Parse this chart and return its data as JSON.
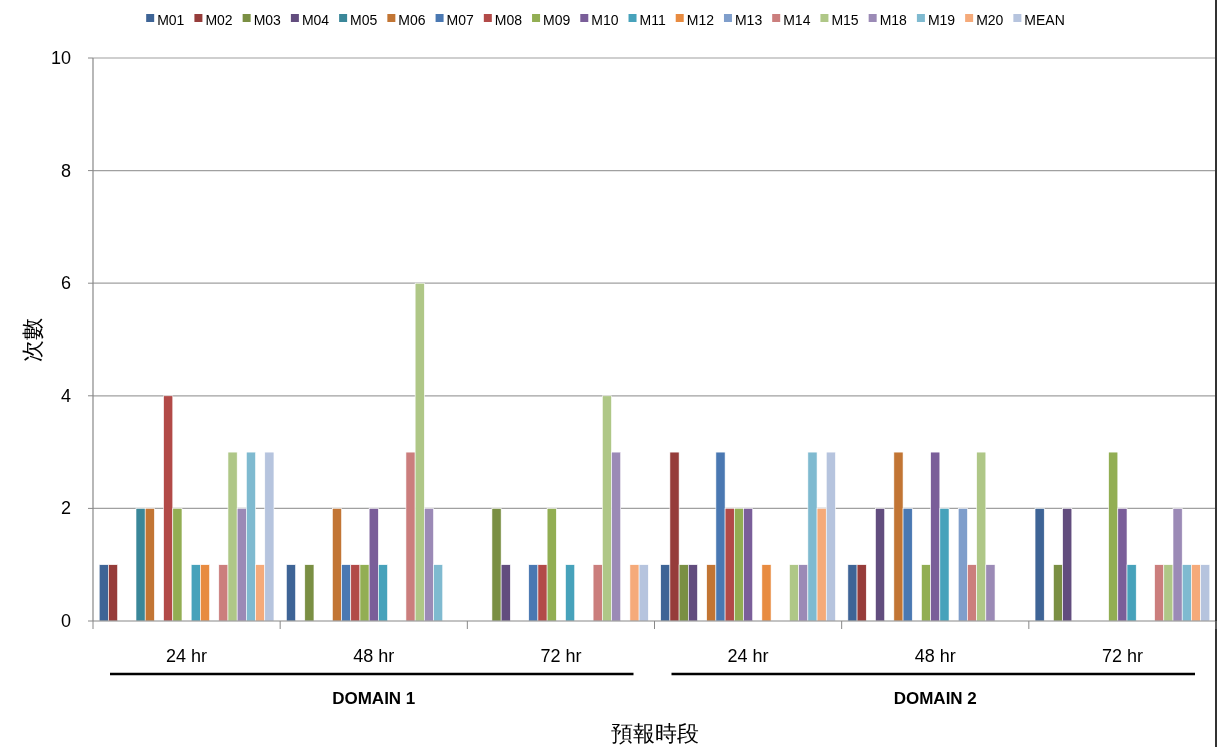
{
  "chart_data": {
    "type": "bar",
    "ylabel": "次數",
    "xlabel": "預報時段",
    "categories": [
      "24 hr",
      "48 hr",
      "72 hr",
      "24 hr",
      "48 hr",
      "72 hr"
    ],
    "annotations": [
      "DOMAIN 1",
      "DOMAIN 2"
    ],
    "ylim": [
      0,
      10
    ],
    "yticks": [
      0,
      2,
      4,
      6,
      8,
      10
    ],
    "grid": "y",
    "legend": "top",
    "series": [
      {
        "name": "M01",
        "color": "#3e6496",
        "values": [
          1,
          1,
          0,
          1,
          1,
          2
        ]
      },
      {
        "name": "M02",
        "color": "#963c3a",
        "values": [
          1,
          0,
          0,
          3,
          1,
          0
        ]
      },
      {
        "name": "M03",
        "color": "#7a8f43",
        "values": [
          0,
          1,
          2,
          1,
          0,
          1
        ]
      },
      {
        "name": "M04",
        "color": "#624d7e",
        "values": [
          0,
          0,
          1,
          1,
          2,
          2
        ]
      },
      {
        "name": "M05",
        "color": "#3a8799",
        "values": [
          2,
          0,
          0,
          0,
          0,
          0
        ]
      },
      {
        "name": "M06",
        "color": "#c27534",
        "values": [
          2,
          2,
          0,
          1,
          3,
          0
        ]
      },
      {
        "name": "M07",
        "color": "#4a78b2",
        "values": [
          0,
          1,
          1,
          3,
          2,
          0
        ]
      },
      {
        "name": "M08",
        "color": "#b24a48",
        "values": [
          4,
          1,
          1,
          2,
          0,
          0
        ]
      },
      {
        "name": "M09",
        "color": "#92ae53",
        "values": [
          2,
          1,
          2,
          2,
          1,
          3
        ]
      },
      {
        "name": "M10",
        "color": "#7a5e99",
        "values": [
          0,
          2,
          0,
          2,
          3,
          2
        ]
      },
      {
        "name": "M11",
        "color": "#47a2bb",
        "values": [
          1,
          1,
          1,
          0,
          2,
          1
        ]
      },
      {
        "name": "M12",
        "color": "#e88b40",
        "values": [
          1,
          0,
          0,
          1,
          0,
          0
        ]
      },
      {
        "name": "M13",
        "color": "#7f9ecb",
        "values": [
          0,
          0,
          0,
          0,
          2,
          0
        ]
      },
      {
        "name": "M14",
        "color": "#cb7e7d",
        "values": [
          1,
          3,
          1,
          0,
          1,
          1
        ]
      },
      {
        "name": "M15",
        "color": "#afc787",
        "values": [
          3,
          6,
          4,
          1,
          3,
          1
        ]
      },
      {
        "name": "M18",
        "color": "#9b8ab6",
        "values": [
          2,
          2,
          3,
          1,
          1,
          2
        ]
      },
      {
        "name": "M19",
        "color": "#7fbad0",
        "values": [
          3,
          1,
          0,
          3,
          0,
          1
        ]
      },
      {
        "name": "M20",
        "color": "#f5aa7a",
        "values": [
          1,
          0,
          1,
          2,
          0,
          1
        ]
      },
      {
        "name": "MEAN",
        "color": "#b6c4de",
        "values": [
          3,
          0,
          1,
          3,
          0,
          1
        ]
      }
    ]
  }
}
